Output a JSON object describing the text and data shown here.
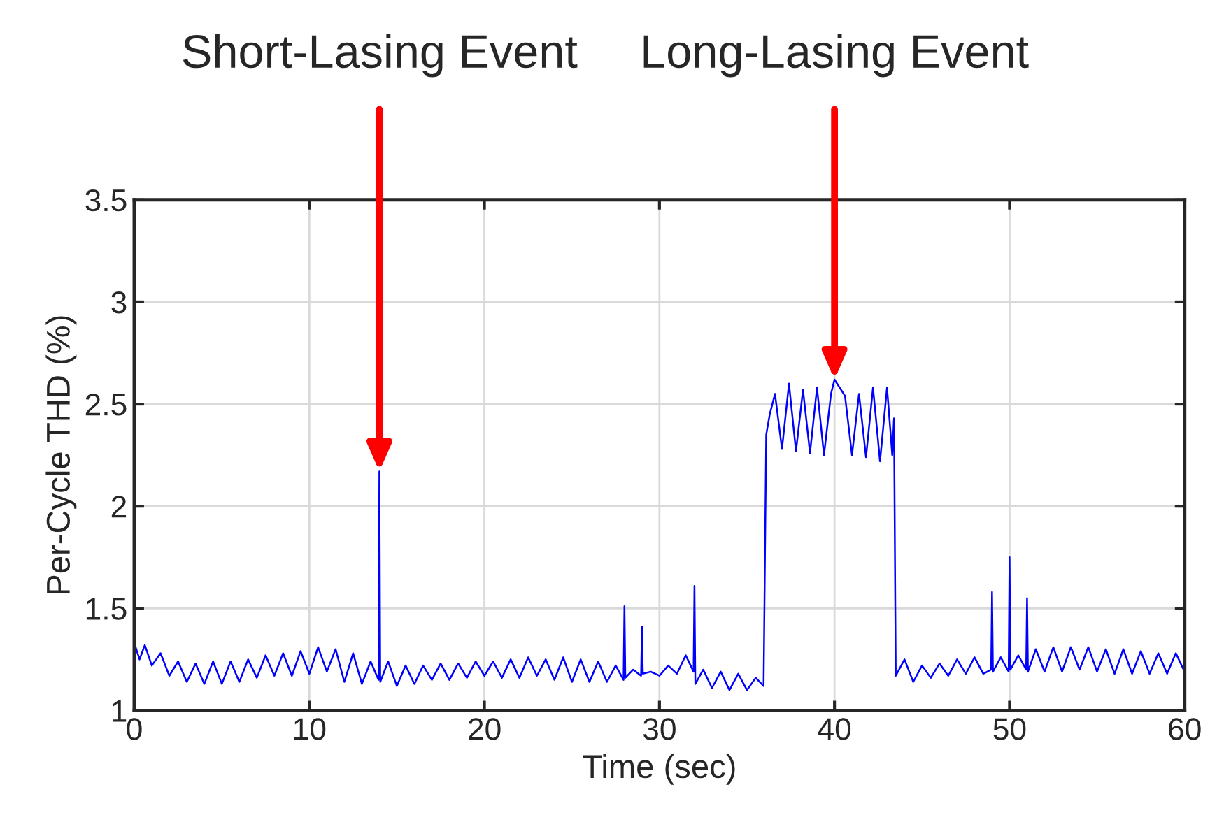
{
  "chart_data": {
    "type": "line",
    "xlabel": "Time (sec)",
    "ylabel": "Per-Cycle THD (%)",
    "xlim": [
      0,
      60
    ],
    "xticks": [
      0,
      10,
      20,
      30,
      40,
      50,
      60
    ],
    "ylim": [
      1,
      3.5
    ],
    "yticks": [
      1,
      1.5,
      2,
      2.5,
      3,
      3.5
    ],
    "grid": true,
    "legend": false,
    "annotations": [
      {
        "text": "Short-Lasing Event",
        "x": 14,
        "y": 2.17
      },
      {
        "text": "Long-Lasing Event",
        "x": 40,
        "y": 2.62
      }
    ],
    "series": [
      {
        "color": "#0000ff",
        "x": [
          0,
          0.3,
          0.6,
          1,
          1.5,
          2,
          2.5,
          3,
          3.5,
          4,
          4.5,
          5,
          5.5,
          6,
          6.5,
          7,
          7.5,
          8,
          8.5,
          9,
          9.5,
          10,
          10.5,
          11,
          11.5,
          12,
          12.5,
          13,
          13.5,
          13.95,
          14,
          14.05,
          14.5,
          15,
          15.5,
          16,
          16.5,
          17,
          17.5,
          18,
          18.5,
          19,
          19.5,
          20,
          20.5,
          21,
          21.5,
          22,
          22.5,
          23,
          23.5,
          24,
          24.5,
          25,
          25.5,
          26,
          26.5,
          27,
          27.5,
          27.95,
          28,
          28.05,
          28.5,
          28.95,
          29,
          29.05,
          29.5,
          30,
          30.5,
          31,
          31.5,
          31.95,
          32,
          32.05,
          32.5,
          33,
          33.5,
          34,
          34.5,
          35,
          35.5,
          35.95,
          36.1,
          36.3,
          36.6,
          37,
          37.4,
          37.8,
          38.2,
          38.6,
          39,
          39.4,
          39.8,
          40,
          40.6,
          41,
          41.4,
          41.8,
          42.2,
          42.6,
          43,
          43.3,
          43.4,
          43.5,
          44,
          44.5,
          45,
          45.5,
          46,
          46.5,
          47,
          47.5,
          48,
          48.5,
          48.95,
          49,
          49.05,
          49.5,
          49.95,
          50,
          50.05,
          50.5,
          50.95,
          51,
          51.05,
          51.5,
          52,
          52.5,
          53,
          53.5,
          54,
          54.5,
          55,
          55.5,
          56,
          56.5,
          57,
          57.5,
          58,
          58.5,
          59,
          59.5,
          60
        ],
        "values": [
          1.33,
          1.25,
          1.32,
          1.22,
          1.28,
          1.17,
          1.24,
          1.14,
          1.23,
          1.13,
          1.24,
          1.13,
          1.24,
          1.14,
          1.25,
          1.16,
          1.27,
          1.17,
          1.28,
          1.17,
          1.29,
          1.18,
          1.31,
          1.19,
          1.3,
          1.14,
          1.28,
          1.13,
          1.24,
          1.15,
          2.17,
          1.14,
          1.24,
          1.12,
          1.22,
          1.13,
          1.22,
          1.15,
          1.23,
          1.15,
          1.23,
          1.16,
          1.24,
          1.17,
          1.24,
          1.16,
          1.25,
          1.16,
          1.26,
          1.17,
          1.25,
          1.15,
          1.26,
          1.14,
          1.25,
          1.14,
          1.24,
          1.14,
          1.22,
          1.15,
          1.51,
          1.16,
          1.2,
          1.17,
          1.41,
          1.18,
          1.19,
          1.17,
          1.22,
          1.18,
          1.27,
          1.19,
          1.61,
          1.13,
          1.2,
          1.11,
          1.19,
          1.1,
          1.18,
          1.1,
          1.16,
          1.12,
          2.35,
          2.45,
          2.55,
          2.28,
          2.6,
          2.27,
          2.57,
          2.26,
          2.58,
          2.25,
          2.55,
          2.62,
          2.54,
          2.25,
          2.55,
          2.24,
          2.58,
          2.22,
          2.58,
          2.25,
          2.43,
          1.17,
          1.25,
          1.14,
          1.22,
          1.16,
          1.23,
          1.17,
          1.25,
          1.18,
          1.26,
          1.18,
          1.2,
          1.58,
          1.19,
          1.26,
          1.19,
          1.75,
          1.2,
          1.27,
          1.2,
          1.55,
          1.19,
          1.3,
          1.19,
          1.31,
          1.19,
          1.31,
          1.2,
          1.31,
          1.19,
          1.3,
          1.18,
          1.3,
          1.18,
          1.29,
          1.18,
          1.28,
          1.18,
          1.28,
          1.19
        ]
      }
    ]
  }
}
